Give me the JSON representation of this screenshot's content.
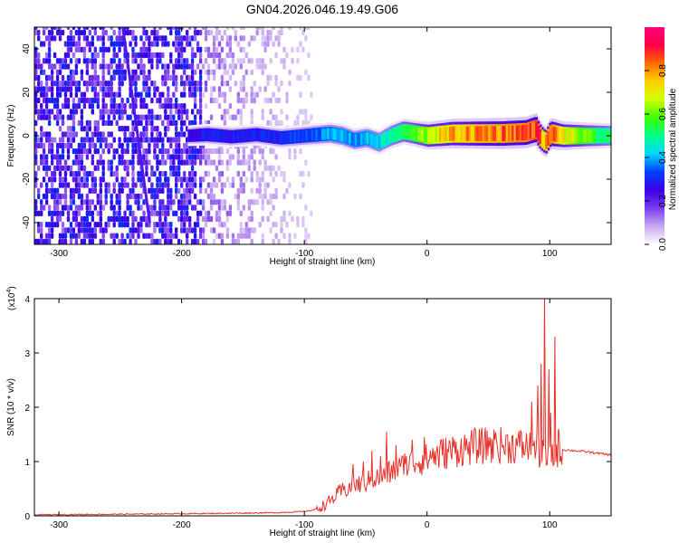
{
  "title": "GN04.2026.046.19.49.G06",
  "chart_data": [
    {
      "type": "heatmap",
      "xlabel": "Height of straight line (km)",
      "ylabel": "Frequency (Hz)",
      "xlim": [
        -320,
        150
      ],
      "ylim": [
        -50,
        50
      ],
      "xticks": [
        -300,
        -200,
        -100,
        0,
        100
      ],
      "yticks": [
        -40,
        -20,
        0,
        20,
        40
      ],
      "colorbar": {
        "label": "Normalized spectral amplitude",
        "range": [
          0,
          1
        ],
        "ticks": [
          0.0,
          0.2,
          0.4,
          0.6,
          0.8
        ],
        "colors": [
          "#ffffff",
          "#c8a8f0",
          "#7a3cf0",
          "#3a00e6",
          "#0040ff",
          "#00d8ff",
          "#00ff88",
          "#3cff00",
          "#d0ff00",
          "#ffd000",
          "#ff6a00",
          "#ff0040",
          "#ff0080"
        ]
      },
      "noise_region_x": [
        -320,
        -95
      ],
      "strong_noise_x": [
        -320,
        -185
      ],
      "signal_ridge": {
        "x": [
          -195,
          -180,
          -160,
          -140,
          -120,
          -100,
          -80,
          -70,
          -60,
          -50,
          -40,
          -30,
          -20,
          -10,
          0,
          20,
          40,
          60,
          80,
          88,
          92,
          96,
          100,
          110,
          130,
          150
        ],
        "y": [
          0,
          0.5,
          -0.5,
          0.5,
          -1,
          0,
          1,
          0,
          -2,
          -1,
          -3,
          0,
          2,
          1,
          0,
          1,
          1,
          1,
          1.5,
          3,
          -1,
          -3,
          1,
          0,
          0,
          0
        ],
        "amplitude": [
          0.25,
          0.3,
          0.3,
          0.3,
          0.32,
          0.35,
          0.4,
          0.42,
          0.4,
          0.42,
          0.45,
          0.5,
          0.55,
          0.6,
          0.7,
          0.8,
          0.85,
          0.88,
          0.9,
          0.95,
          0.85,
          0.8,
          0.9,
          0.75,
          0.6,
          0.5
        ]
      },
      "diagonal_streak": {
        "x": [
          -248,
          -226
        ],
        "y": [
          50,
          -40
        ]
      }
    },
    {
      "type": "line",
      "xlabel": "Height of straight line (km)",
      "ylabel": "SNR (10 * v/v)",
      "y_multiplier": "(x10",
      "y_multiplier_exp": "4",
      "y_multiplier_close": ")",
      "xlim": [
        -320,
        150
      ],
      "ylim": [
        0,
        4
      ],
      "xticks": [
        -300,
        -200,
        -100,
        0,
        100
      ],
      "yticks": [
        0,
        1,
        2,
        3,
        4
      ],
      "color": "#e8302a",
      "envelope": {
        "x": [
          -320,
          -250,
          -200,
          -150,
          -120,
          -100,
          -90,
          -80,
          -70,
          -60,
          -50,
          -40,
          -30,
          -20,
          -10,
          0,
          20,
          40,
          60,
          80,
          90,
          95,
          100,
          105,
          110,
          130,
          150
        ],
        "y": [
          0.02,
          0.03,
          0.04,
          0.05,
          0.06,
          0.08,
          0.12,
          0.25,
          0.45,
          0.55,
          0.62,
          0.7,
          0.8,
          0.9,
          1.0,
          1.05,
          1.2,
          1.28,
          1.3,
          1.28,
          1.2,
          1.1,
          1.0,
          1.2,
          1.22,
          1.18,
          1.12
        ]
      },
      "spikes": {
        "x": [
          -60,
          -52,
          -45,
          -38,
          -33,
          -25,
          -18,
          -12,
          -2,
          5,
          12,
          50,
          55,
          85,
          90,
          93,
          96,
          99,
          101,
          104,
          107
        ],
        "y": [
          0.95,
          1.0,
          1.2,
          1.1,
          1.55,
          1.3,
          1.15,
          1.4,
          1.45,
          1.25,
          1.4,
          1.45,
          1.4,
          2.1,
          2.4,
          2.8,
          4.05,
          2.7,
          1.9,
          3.3,
          1.6
        ]
      }
    }
  ]
}
